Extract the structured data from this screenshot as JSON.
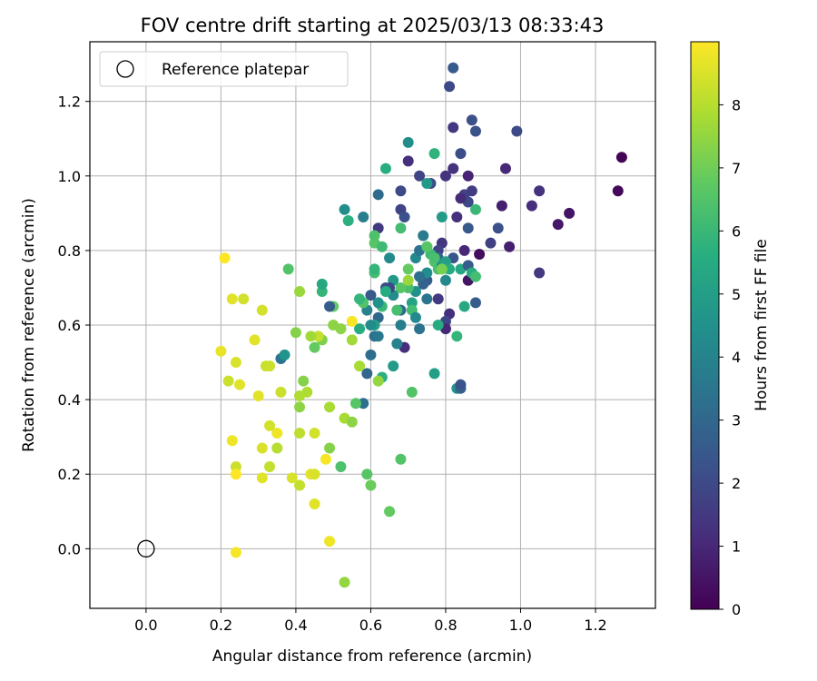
{
  "chart_data": {
    "type": "scatter",
    "title": "FOV centre drift starting at 2025/03/13 08:33:43",
    "xlabel": "Angular distance from reference (arcmin)",
    "ylabel": "Rotation from reference (arcmin)",
    "xlim": [
      -0.15,
      1.36
    ],
    "ylim": [
      -0.16,
      1.36
    ],
    "xticks": [
      "0.0",
      "0.2",
      "0.4",
      "0.6",
      "0.8",
      "1.0",
      "1.2"
    ],
    "yticks": [
      "0.0",
      "0.2",
      "0.4",
      "0.6",
      "0.8",
      "1.0",
      "1.2"
    ],
    "grid": true,
    "legend": {
      "position": "top-left",
      "entries": [
        "Reference platepar"
      ]
    },
    "reference_point": {
      "x": 0.0,
      "y": 0.0
    },
    "colorbar": {
      "label": "Hours from first FF file",
      "colormap": "viridis",
      "range": [
        0,
        9
      ],
      "ticks": [
        "0",
        "1",
        "2",
        "3",
        "4",
        "5",
        "6",
        "7",
        "8"
      ]
    },
    "series": [
      {
        "points": [
          [
            1.27,
            1.05,
            0.1
          ],
          [
            1.26,
            0.96,
            0.2
          ],
          [
            1.13,
            0.9,
            0.5
          ],
          [
            1.1,
            0.87,
            0.6
          ],
          [
            0.97,
            0.81,
            0.8
          ],
          [
            0.95,
            0.92,
            0.8
          ],
          [
            0.96,
            1.02,
            1.0
          ],
          [
            0.89,
            0.79,
            0.3
          ],
          [
            0.86,
            0.72,
            0.5
          ],
          [
            0.86,
            1.0,
            0.9
          ],
          [
            1.05,
            0.74,
            1.5
          ],
          [
            1.03,
            0.92,
            1.2
          ],
          [
            1.05,
            0.96,
            1.3
          ],
          [
            0.99,
            1.12,
            2.0
          ],
          [
            0.92,
            0.82,
            1.7
          ],
          [
            0.94,
            0.86,
            2.2
          ],
          [
            0.87,
            1.15,
            2.2
          ],
          [
            0.88,
            1.12,
            2.3
          ],
          [
            0.84,
            1.06,
            2.1
          ],
          [
            0.85,
            0.95,
            1.8
          ],
          [
            0.86,
            0.93,
            2.0
          ],
          [
            0.87,
            0.96,
            1.6
          ],
          [
            0.82,
            1.29,
            2.5
          ],
          [
            0.81,
            1.24,
            2.0
          ],
          [
            0.82,
            1.13,
            1.4
          ],
          [
            0.82,
            1.02,
            1.3
          ],
          [
            0.83,
            0.89,
            1.2
          ],
          [
            0.84,
            0.94,
            1.1
          ],
          [
            0.8,
            1.0,
            1.3
          ],
          [
            0.73,
            1.0,
            1.9
          ],
          [
            0.76,
            0.98,
            2.1
          ],
          [
            0.7,
            1.04,
            1.2
          ],
          [
            0.68,
            0.96,
            2.0
          ],
          [
            0.68,
            0.91,
            1.8
          ],
          [
            0.69,
            0.89,
            2.2
          ],
          [
            0.62,
            0.95,
            3.1
          ],
          [
            0.62,
            0.86,
            1.5
          ],
          [
            0.58,
            0.89,
            3.8
          ],
          [
            0.53,
            0.91,
            4.4
          ],
          [
            0.54,
            0.88,
            5.7
          ],
          [
            0.64,
            1.02,
            5.6
          ],
          [
            0.7,
            1.09,
            4.4
          ],
          [
            0.77,
            1.06,
            5.8
          ],
          [
            0.75,
            0.98,
            4.8
          ],
          [
            0.79,
            0.89,
            4.9
          ],
          [
            0.86,
            0.86,
            2.5
          ],
          [
            0.88,
            0.91,
            6.0
          ],
          [
            0.85,
            0.8,
            1.0
          ],
          [
            0.82,
            0.78,
            2.4
          ],
          [
            0.79,
            0.82,
            1.4
          ],
          [
            0.78,
            0.8,
            1.8
          ],
          [
            0.78,
            0.78,
            2.9
          ],
          [
            0.74,
            0.84,
            3.7
          ],
          [
            0.72,
            0.78,
            4.2
          ],
          [
            0.73,
            0.8,
            3.4
          ],
          [
            0.75,
            0.81,
            5.8
          ],
          [
            0.76,
            0.79,
            6.1
          ],
          [
            0.77,
            0.77,
            6.5
          ],
          [
            0.78,
            0.75,
            6.3
          ],
          [
            0.79,
            0.76,
            4.6
          ],
          [
            0.8,
            0.77,
            5.1
          ],
          [
            0.81,
            0.75,
            5.5
          ],
          [
            0.8,
            0.72,
            4.2
          ],
          [
            0.84,
            0.75,
            5.3
          ],
          [
            0.86,
            0.76,
            2.6
          ],
          [
            0.87,
            0.74,
            5.6
          ],
          [
            0.88,
            0.73,
            6.2
          ],
          [
            0.88,
            0.66,
            2.6
          ],
          [
            0.85,
            0.65,
            5.4
          ],
          [
            0.81,
            0.63,
            1.2
          ],
          [
            0.8,
            0.61,
            1.9
          ],
          [
            0.8,
            0.59,
            1.0
          ],
          [
            0.78,
            0.6,
            5.5
          ],
          [
            0.78,
            0.67,
            1.5
          ],
          [
            0.75,
            0.67,
            3.5
          ],
          [
            0.75,
            0.72,
            2.6
          ],
          [
            0.75,
            0.74,
            4.4
          ],
          [
            0.74,
            0.71,
            2.8
          ],
          [
            0.73,
            0.73,
            3.3
          ],
          [
            0.72,
            0.69,
            4.5
          ],
          [
            0.71,
            0.66,
            5.2
          ],
          [
            0.71,
            0.64,
            6.2
          ],
          [
            0.72,
            0.62,
            4.2
          ],
          [
            0.73,
            0.59,
            3.4
          ],
          [
            0.68,
            0.6,
            3.8
          ],
          [
            0.69,
            0.54,
            1.2
          ],
          [
            0.67,
            0.55,
            4.0
          ],
          [
            0.68,
            0.64,
            3.1
          ],
          [
            0.7,
            0.7,
            6.3
          ],
          [
            0.68,
            0.7,
            6.6
          ],
          [
            0.66,
            0.68,
            4.3
          ],
          [
            0.66,
            0.72,
            4.8
          ],
          [
            0.65,
            0.7,
            1.9
          ],
          [
            0.64,
            0.7,
            2.1
          ],
          [
            0.64,
            0.69,
            5.5
          ],
          [
            0.63,
            0.65,
            6.0
          ],
          [
            0.62,
            0.66,
            4.5
          ],
          [
            0.62,
            0.62,
            3.0
          ],
          [
            0.61,
            0.6,
            5.0
          ],
          [
            0.61,
            0.57,
            3.3
          ],
          [
            0.62,
            0.57,
            3.6
          ],
          [
            0.6,
            0.68,
            2.5
          ],
          [
            0.6,
            0.6,
            4.3
          ],
          [
            0.6,
            0.52,
            3.2
          ],
          [
            0.59,
            0.47,
            3.0
          ],
          [
            0.58,
            0.39,
            3.3
          ],
          [
            0.57,
            0.59,
            5.5
          ],
          [
            0.59,
            0.64,
            4.0
          ],
          [
            0.58,
            0.66,
            6.5
          ],
          [
            0.57,
            0.67,
            5.9
          ],
          [
            0.61,
            0.74,
            6.2
          ],
          [
            0.61,
            0.75,
            5.9
          ],
          [
            0.61,
            0.82,
            6.6
          ],
          [
            0.61,
            0.84,
            6.4
          ],
          [
            0.63,
            0.81,
            6.1
          ],
          [
            0.65,
            0.78,
            4.3
          ],
          [
            0.68,
            0.86,
            6.2
          ],
          [
            0.7,
            0.75,
            6.8
          ],
          [
            0.7,
            0.72,
            7.6
          ],
          [
            0.67,
            0.64,
            6.3
          ],
          [
            0.66,
            0.49,
            4.8
          ],
          [
            0.63,
            0.46,
            5.7
          ],
          [
            0.62,
            0.45,
            7.5
          ],
          [
            0.75,
            0.81,
            6.6
          ],
          [
            0.77,
            0.78,
            6.3
          ],
          [
            0.79,
            0.75,
            7.1
          ],
          [
            0.83,
            0.57,
            5.9
          ],
          [
            0.83,
            0.43,
            4.6
          ],
          [
            0.84,
            0.43,
            2.8
          ],
          [
            0.84,
            0.44,
            2.3
          ],
          [
            0.77,
            0.47,
            5.0
          ],
          [
            0.71,
            0.42,
            6.5
          ],
          [
            0.68,
            0.24,
            6.5
          ],
          [
            0.65,
            0.1,
            6.8
          ],
          [
            0.6,
            0.17,
            6.9
          ],
          [
            0.59,
            0.2,
            6.6
          ],
          [
            0.52,
            0.22,
            6.4
          ],
          [
            0.49,
            0.27,
            7.3
          ],
          [
            0.53,
            0.35,
            7.8
          ],
          [
            0.55,
            0.34,
            7.4
          ],
          [
            0.49,
            0.38,
            7.8
          ],
          [
            0.47,
            0.56,
            7.2
          ],
          [
            0.46,
            0.57,
            8.2
          ],
          [
            0.45,
            0.54,
            6.8
          ],
          [
            0.44,
            0.57,
            7.7
          ],
          [
            0.47,
            0.69,
            5.9
          ],
          [
            0.47,
            0.71,
            5.4
          ],
          [
            0.5,
            0.65,
            6.8
          ],
          [
            0.49,
            0.65,
            2.6
          ],
          [
            0.5,
            0.6,
            7.4
          ],
          [
            0.52,
            0.59,
            7.4
          ],
          [
            0.55,
            0.61,
            8.9
          ],
          [
            0.55,
            0.56,
            7.7
          ],
          [
            0.56,
            0.39,
            6.6
          ],
          [
            0.57,
            0.49,
            7.8
          ],
          [
            0.36,
            0.51,
            3.5
          ],
          [
            0.37,
            0.52,
            4.6
          ],
          [
            0.38,
            0.75,
            6.5
          ],
          [
            0.41,
            0.69,
            7.6
          ],
          [
            0.4,
            0.58,
            7.3
          ],
          [
            0.42,
            0.45,
            7.3
          ],
          [
            0.43,
            0.42,
            7.9
          ],
          [
            0.41,
            0.41,
            7.9
          ],
          [
            0.41,
            0.38,
            7.4
          ],
          [
            0.41,
            0.31,
            8.1
          ],
          [
            0.45,
            0.31,
            8.4
          ],
          [
            0.44,
            0.2,
            8.6
          ],
          [
            0.45,
            0.2,
            8.5
          ],
          [
            0.45,
            0.12,
            8.6
          ],
          [
            0.41,
            0.17,
            8.2
          ],
          [
            0.39,
            0.19,
            8.5
          ],
          [
            0.48,
            0.24,
            8.9
          ],
          [
            0.49,
            0.02,
            8.8
          ],
          [
            0.53,
            -0.09,
            7.5
          ],
          [
            0.31,
            0.64,
            8.4
          ],
          [
            0.29,
            0.56,
            8.6
          ],
          [
            0.33,
            0.49,
            8.3
          ],
          [
            0.32,
            0.49,
            8.3
          ],
          [
            0.36,
            0.42,
            8.3
          ],
          [
            0.35,
            0.31,
            8.8
          ],
          [
            0.35,
            0.27,
            8.0
          ],
          [
            0.33,
            0.33,
            8.4
          ],
          [
            0.33,
            0.22,
            8.2
          ],
          [
            0.31,
            0.27,
            8.5
          ],
          [
            0.31,
            0.19,
            8.6
          ],
          [
            0.3,
            0.41,
            8.6
          ],
          [
            0.26,
            0.67,
            8.4
          ],
          [
            0.23,
            0.67,
            8.6
          ],
          [
            0.21,
            0.78,
            9.0
          ],
          [
            0.2,
            0.53,
            8.7
          ],
          [
            0.22,
            0.45,
            8.3
          ],
          [
            0.24,
            0.5,
            8.5
          ],
          [
            0.25,
            0.44,
            8.6
          ],
          [
            0.23,
            0.29,
            8.8
          ],
          [
            0.24,
            0.22,
            8.3
          ],
          [
            0.24,
            0.2,
            9.0
          ],
          [
            0.24,
            -0.01,
            8.9
          ]
        ]
      }
    ]
  }
}
